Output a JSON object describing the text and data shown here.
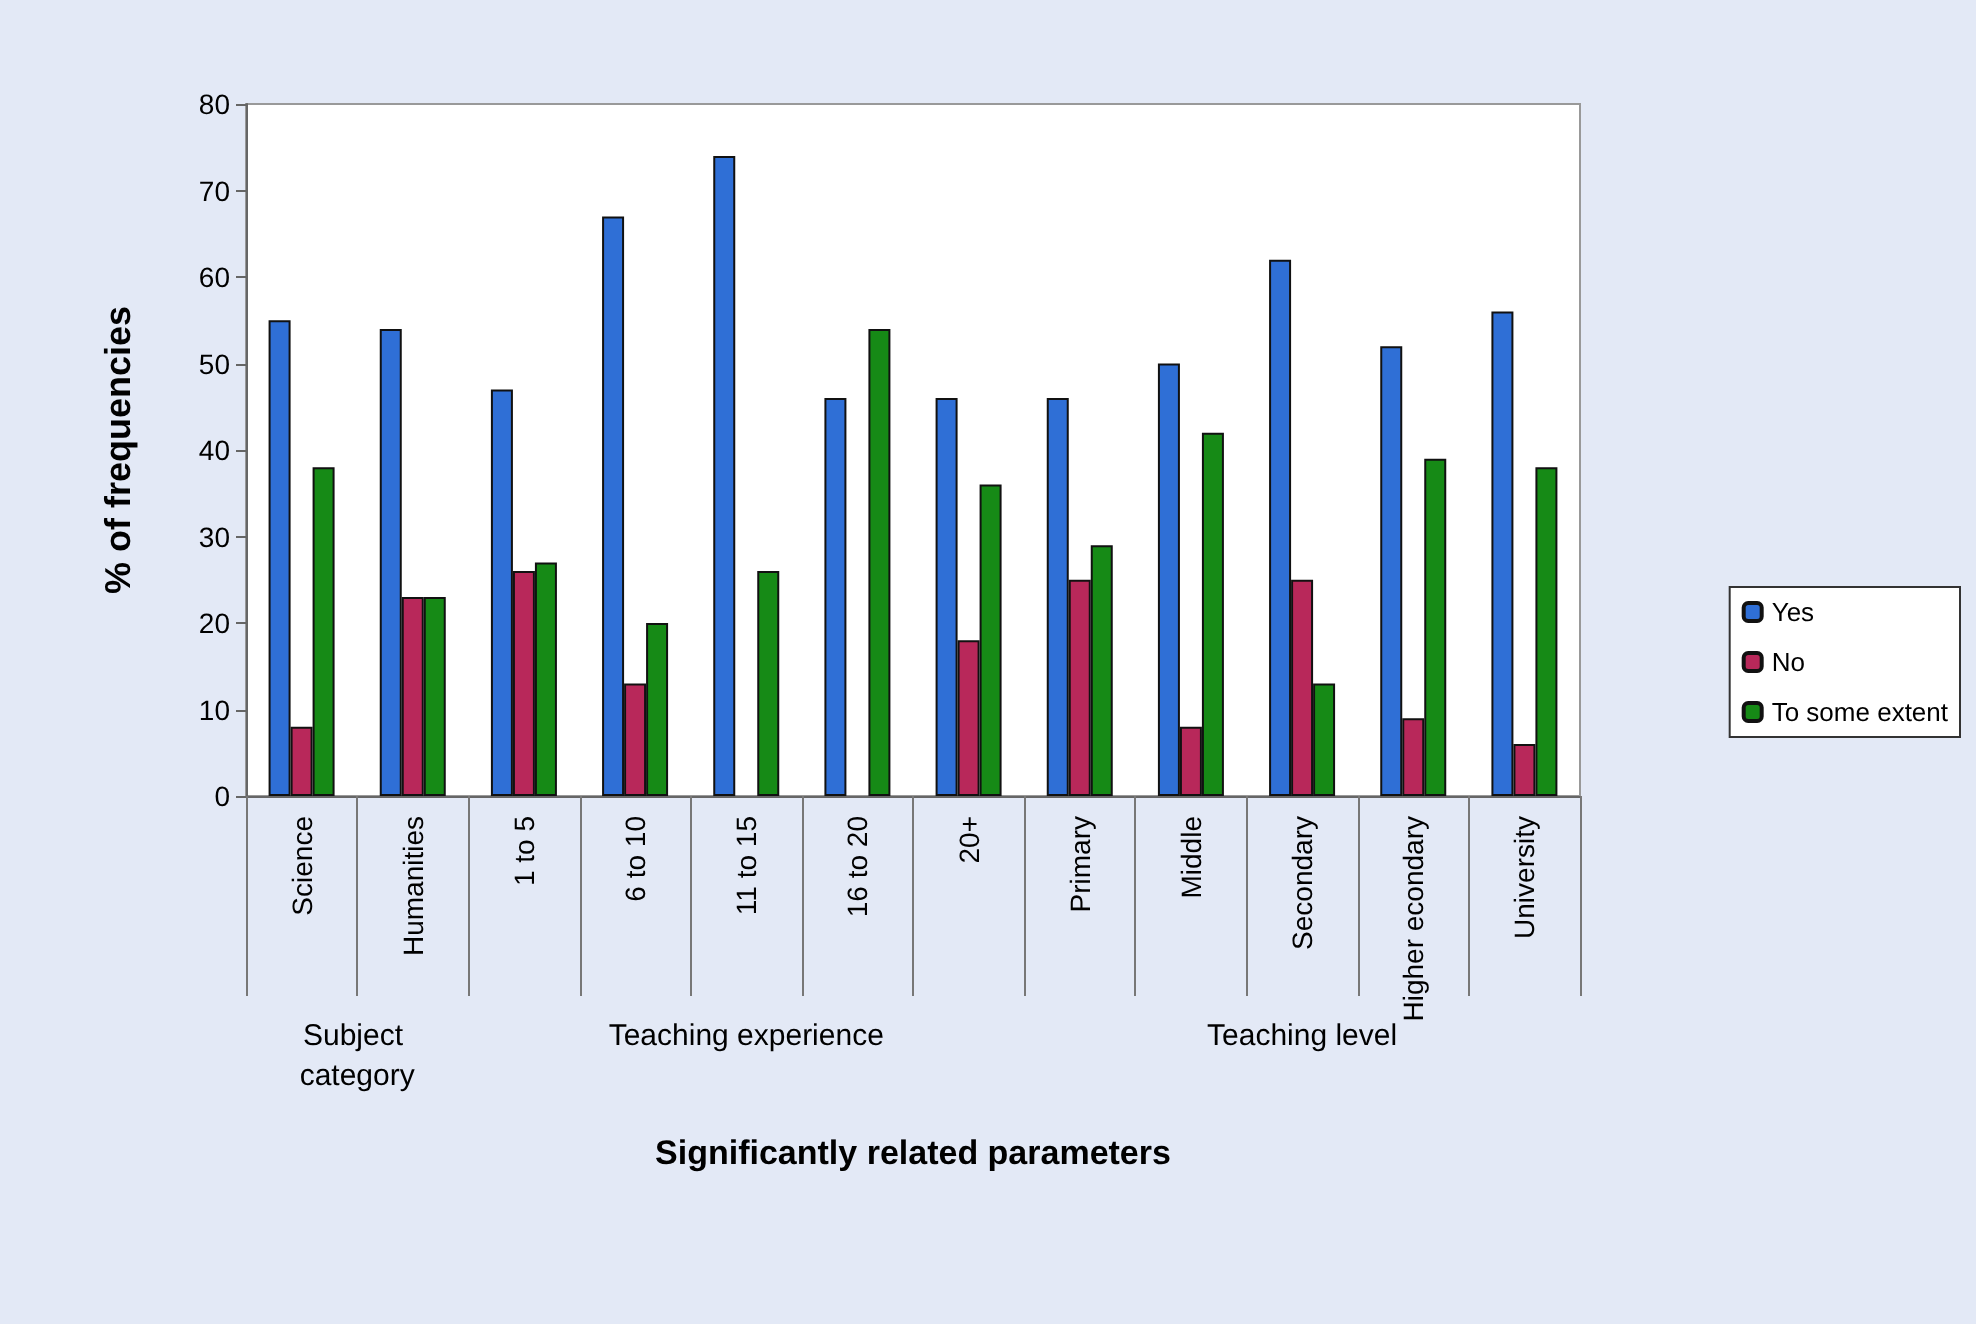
{
  "chart_data": {
    "type": "bar",
    "xlabel": "Significantly related parameters",
    "ylabel": "% of frequencies",
    "categories": [
      "Science",
      "Humanities",
      "1 to 5",
      "6 to 10",
      "11 to 15",
      "16 to 20",
      "20+",
      "Primary",
      "Middle",
      "Secondary",
      "Higher econdary",
      "University"
    ],
    "series": [
      {
        "name": "Yes",
        "color": "#2f6fd6",
        "values": [
          55,
          54,
          47,
          67,
          74,
          46,
          46,
          46,
          50,
          62,
          52,
          56
        ]
      },
      {
        "name": "No",
        "color": "#b8285a",
        "values": [
          8,
          23,
          26,
          13,
          0,
          0,
          18,
          25,
          8,
          25,
          9,
          6
        ]
      },
      {
        "name": "To some extent",
        "color": "#168a16",
        "values": [
          38,
          23,
          27,
          20,
          26,
          54,
          36,
          29,
          42,
          13,
          39,
          38
        ]
      }
    ],
    "annotations": [
      "Subject category",
      "Teaching experience",
      "Teaching level"
    ],
    "ylim": [
      0,
      80
    ],
    "yticks": [
      0,
      10,
      20,
      30,
      40,
      50,
      60,
      70,
      80
    ],
    "grid": false,
    "legend": "right"
  }
}
